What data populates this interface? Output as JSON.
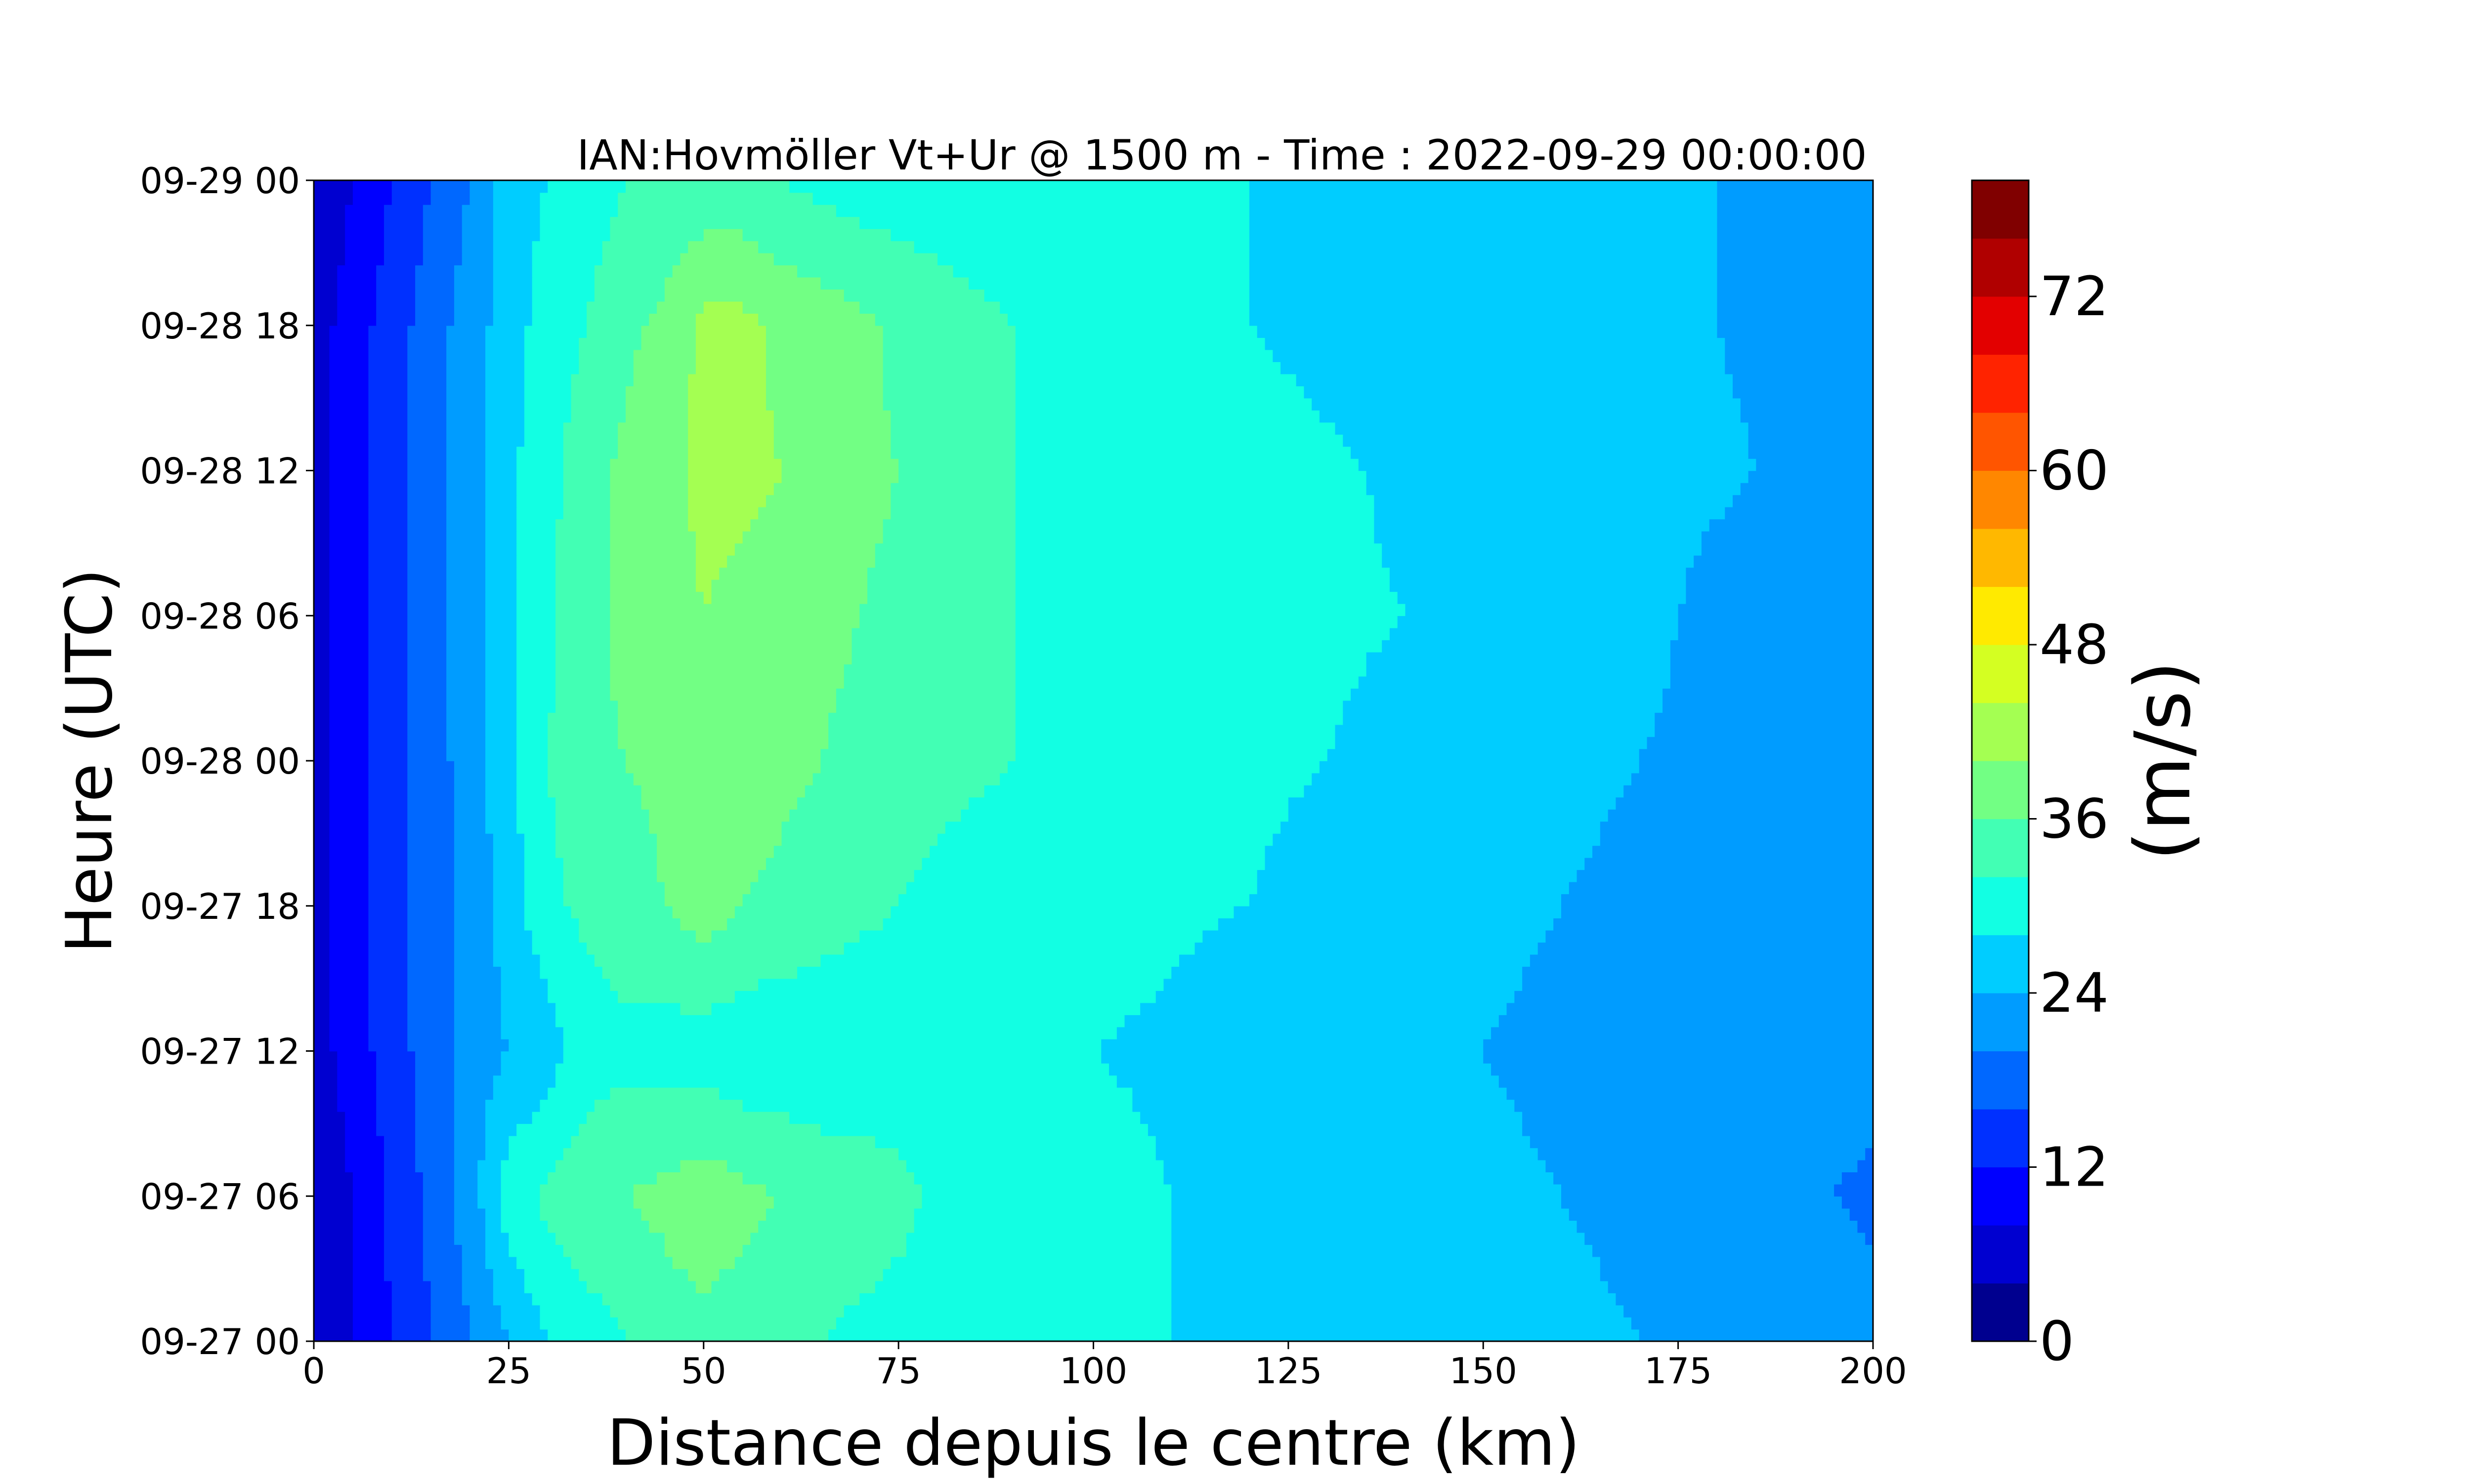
{
  "chart_data": {
    "type": "heatmap",
    "subtype": "filled-contour hovmoller",
    "title": "IAN:Hovmöller Vt+Ur @ 1500 m - Time : 2022-09-29 00:00:00",
    "xlabel": "Distance depuis le centre (km)",
    "ylabel": "Heure (UTC)",
    "xlim": [
      0,
      200
    ],
    "x_ticks": [
      0,
      25,
      50,
      75,
      100,
      125,
      150,
      175,
      200
    ],
    "x_tick_labels": [
      "0",
      "25",
      "50",
      "75",
      "100",
      "125",
      "150",
      "175",
      "200"
    ],
    "y_ticks": [
      "09-27 00",
      "09-27 06",
      "09-27 12",
      "09-27 18",
      "09-28 00",
      "09-28 06",
      "09-28 12",
      "09-28 18",
      "09-29 00"
    ],
    "y_ticks_hours": [
      0,
      6,
      12,
      18,
      24,
      30,
      36,
      42,
      48
    ],
    "colorbar": {
      "label": "(m/s)",
      "levels": [
        0,
        4,
        8,
        12,
        16,
        20,
        24,
        28,
        32,
        36,
        40,
        44,
        48,
        52,
        56,
        60,
        64,
        68,
        72,
        76,
        80
      ],
      "tick_values": [
        0,
        12,
        24,
        36,
        48,
        60,
        72
      ],
      "tick_labels": [
        "0",
        "12",
        "24",
        "36",
        "48",
        "60",
        "72"
      ],
      "colors": [
        "#00008f",
        "#0000d0",
        "#0000ff",
        "#0030ff",
        "#0068ff",
        "#009cff",
        "#00cdff",
        "#12ffe3",
        "#42ffb4",
        "#72ff84",
        "#a4ff52",
        "#d4ff22",
        "#ffea00",
        "#ffb800",
        "#ff8700",
        "#ff5500",
        "#ff2300",
        "#e30000",
        "#b00000",
        "#800000"
      ]
    },
    "grid": false,
    "x_km": [
      0,
      5,
      10,
      15,
      20,
      25,
      30,
      35,
      40,
      45,
      50,
      55,
      60,
      65,
      70,
      75,
      80,
      90,
      100,
      110,
      120,
      130,
      140,
      150,
      160,
      170,
      180,
      190,
      200
    ],
    "time_hours": [
      0,
      6,
      12,
      18,
      24,
      30,
      36,
      42,
      48
    ],
    "values_ms": [
      [
        4,
        8,
        12,
        16,
        20,
        24,
        28,
        30,
        32,
        34,
        35,
        34,
        33,
        32,
        31,
        30,
        30,
        29,
        29,
        28,
        27,
        26,
        26,
        25,
        25,
        24,
        23,
        23,
        22
      ],
      [
        4,
        8,
        13,
        17,
        22,
        30,
        33,
        35,
        36,
        37,
        38.5,
        37,
        36,
        35,
        34.5,
        33.5,
        31,
        30,
        29,
        28,
        27,
        26,
        26,
        25,
        24,
        23,
        22,
        21,
        19
      ],
      [
        6,
        10,
        14,
        18,
        22,
        24,
        26,
        30,
        31,
        30,
        30,
        29,
        29,
        28.5,
        28.5,
        28.5,
        28.5,
        28,
        28,
        27.5,
        26,
        25,
        24,
        24,
        23,
        23,
        23,
        22,
        22
      ],
      [
        6,
        10,
        14,
        18,
        21,
        26,
        31,
        33,
        34,
        36,
        38,
        36,
        35,
        34,
        33,
        32,
        31,
        30,
        29,
        28.5,
        28,
        27,
        26,
        25,
        24,
        23,
        22,
        22,
        21
      ],
      [
        6,
        10,
        14,
        18,
        22,
        27,
        32,
        35,
        36,
        37,
        39,
        38,
        37,
        36,
        35,
        34,
        33,
        32,
        30,
        29,
        28.5,
        28,
        27,
        26,
        25,
        24,
        23,
        22,
        22
      ],
      [
        6,
        10,
        14,
        18,
        22,
        27,
        31,
        35,
        37,
        38,
        40,
        39,
        38,
        37,
        36,
        35,
        33,
        32,
        31,
        30,
        29,
        28.5,
        28,
        27,
        26,
        25,
        23,
        22,
        22
      ],
      [
        6,
        10,
        14,
        18,
        22,
        27,
        31,
        34,
        37,
        39,
        41,
        41,
        40,
        38,
        37,
        36,
        34,
        32,
        31,
        30,
        29.5,
        28.5,
        27.5,
        27,
        26,
        25,
        24.5,
        23.5,
        22
      ],
      [
        6,
        10,
        14,
        18,
        22,
        26,
        30,
        32,
        35,
        37,
        41,
        41,
        39,
        38,
        37,
        35,
        34,
        32,
        31,
        30,
        28,
        27,
        26,
        26,
        26,
        25,
        24,
        23,
        22
      ],
      [
        4,
        8,
        12,
        16,
        20,
        26,
        28,
        30,
        32,
        33,
        33,
        33,
        32,
        31,
        30,
        30,
        29.5,
        29,
        29,
        28.5,
        28,
        27,
        26,
        26,
        26,
        25,
        24,
        23,
        22
      ]
    ]
  }
}
